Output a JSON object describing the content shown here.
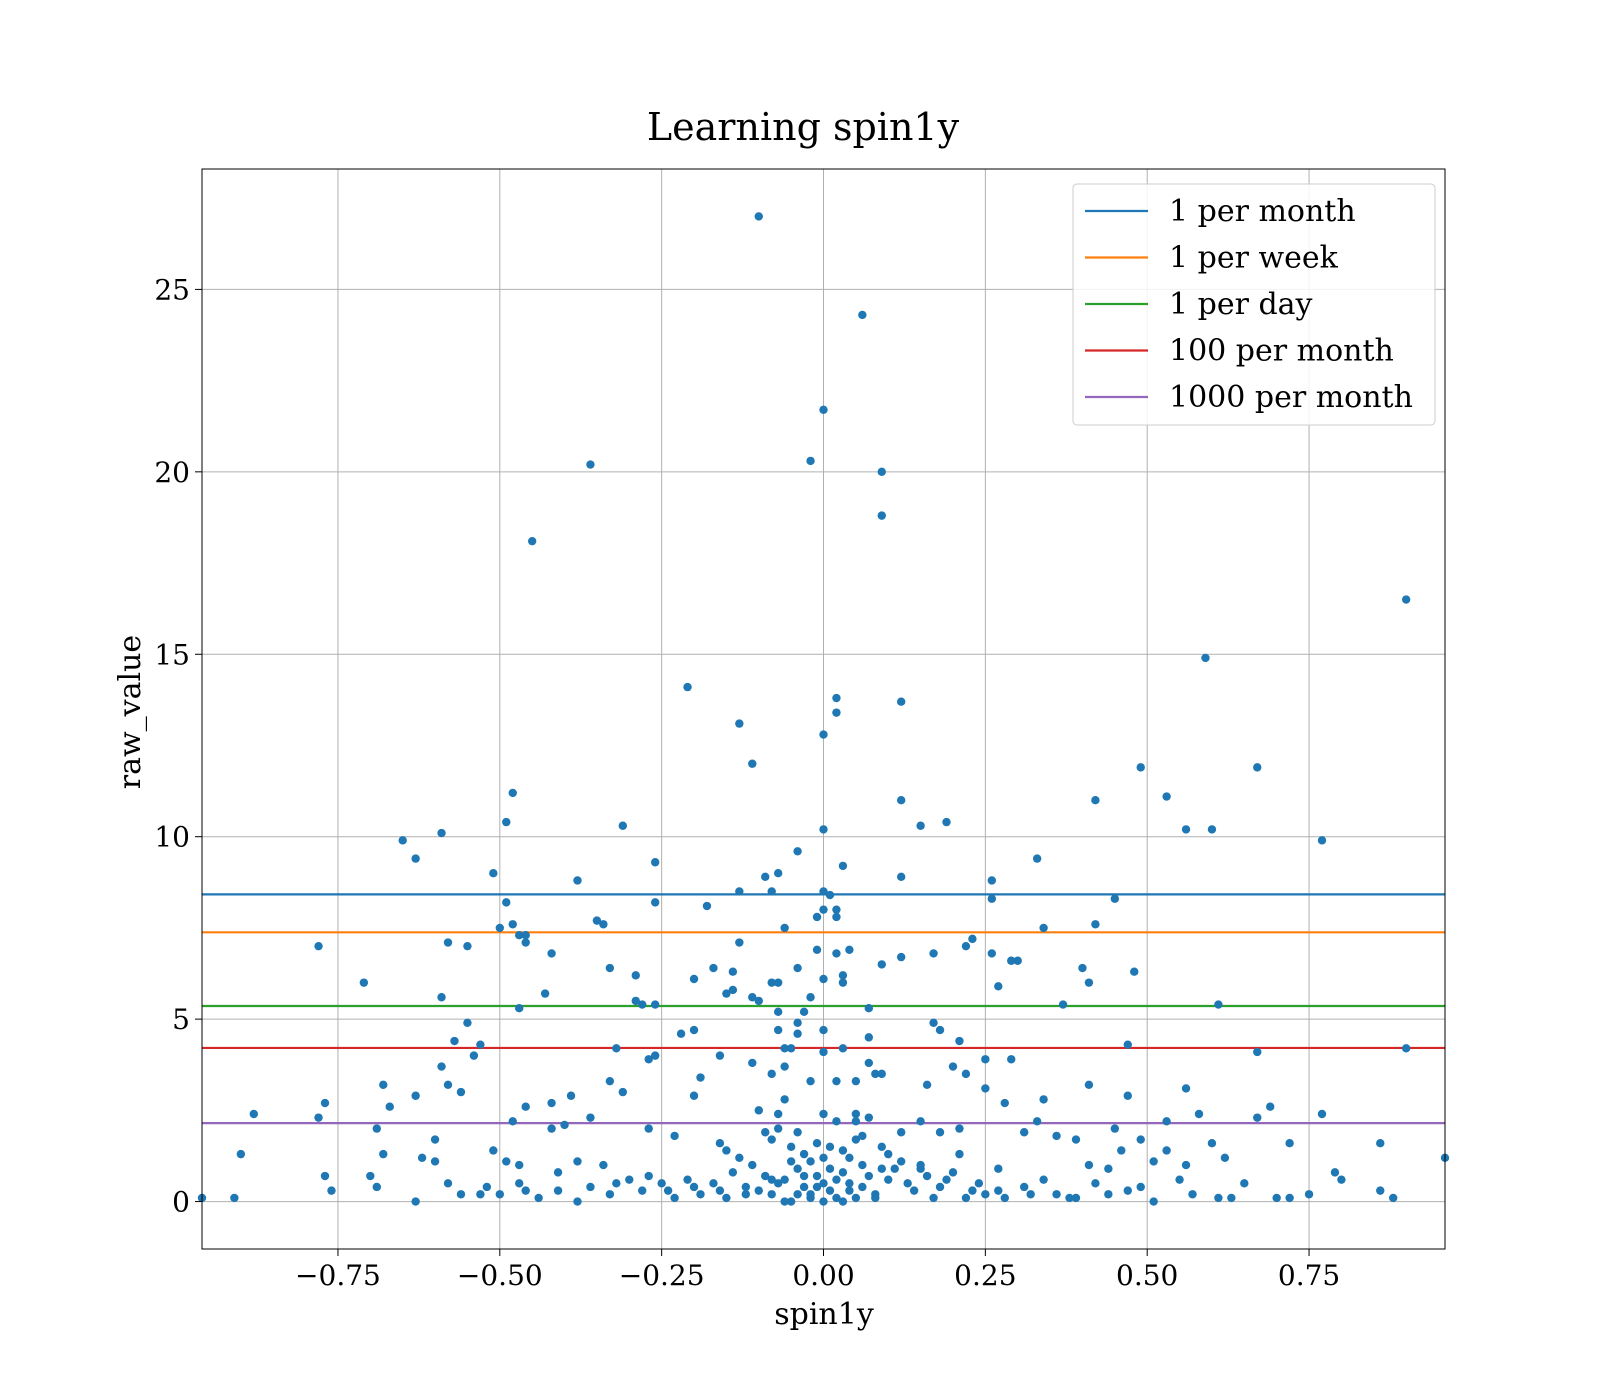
{
  "chart_data": {
    "type": "scatter",
    "title": "Learning spin1y",
    "xlabel": "spin1y",
    "ylabel": "raw_value",
    "xlim": [
      -0.96,
      0.96
    ],
    "ylim": [
      -1.3,
      28.3
    ],
    "grid": true,
    "legend_position": "top-right",
    "x_ticks": [
      -0.75,
      -0.5,
      -0.25,
      0.0,
      0.25,
      0.5,
      0.75
    ],
    "x_tick_labels": [
      "−0.75",
      "−0.50",
      "−0.25",
      "0.00",
      "0.25",
      "0.50",
      "0.75"
    ],
    "y_ticks": [
      0,
      5,
      10,
      15,
      20,
      25
    ],
    "y_tick_labels": [
      "0",
      "5",
      "10",
      "15",
      "20",
      "25"
    ],
    "scatter_color": "#1f77b4",
    "hlines": [
      {
        "name": "1 per month",
        "y": 8.42,
        "color": "#1f77b4"
      },
      {
        "name": "1 per week",
        "y": 7.38,
        "color": "#ff7f0e"
      },
      {
        "name": "1 per day",
        "y": 5.36,
        "color": "#2ca02c"
      },
      {
        "name": "100 per month",
        "y": 4.21,
        "color": "#d62728"
      },
      {
        "name": "1000 per month",
        "y": 2.15,
        "color": "#9467bd"
      }
    ],
    "points": [
      [
        -0.1,
        27.0
      ],
      [
        0.06,
        24.3
      ],
      [
        0.0,
        21.7
      ],
      [
        -0.02,
        20.3
      ],
      [
        0.09,
        20.0
      ],
      [
        -0.36,
        20.2
      ],
      [
        0.09,
        18.8
      ],
      [
        -0.45,
        18.1
      ],
      [
        0.9,
        16.5
      ],
      [
        0.59,
        14.9
      ],
      [
        -0.21,
        14.1
      ],
      [
        0.02,
        13.8
      ],
      [
        0.12,
        13.7
      ],
      [
        0.02,
        13.4
      ],
      [
        -0.13,
        13.1
      ],
      [
        0.0,
        12.8
      ],
      [
        -0.11,
        12.0
      ],
      [
        0.67,
        11.9
      ],
      [
        0.49,
        11.9
      ],
      [
        -0.48,
        11.2
      ],
      [
        0.53,
        11.1
      ],
      [
        0.42,
        11.0
      ],
      [
        0.12,
        11.0
      ],
      [
        0.19,
        10.4
      ],
      [
        -0.49,
        10.4
      ],
      [
        -0.31,
        10.3
      ],
      [
        0.15,
        10.3
      ],
      [
        0.0,
        10.2
      ],
      [
        0.56,
        10.2
      ],
      [
        0.6,
        10.2
      ],
      [
        -0.59,
        10.1
      ],
      [
        -0.65,
        9.9
      ],
      [
        0.77,
        9.9
      ],
      [
        -0.04,
        9.6
      ],
      [
        0.33,
        9.4
      ],
      [
        -0.63,
        9.4
      ],
      [
        -0.26,
        9.3
      ],
      [
        0.03,
        9.2
      ],
      [
        -0.51,
        9.0
      ],
      [
        -0.07,
        9.0
      ],
      [
        0.12,
        8.9
      ],
      [
        -0.09,
        8.9
      ],
      [
        -0.38,
        8.8
      ],
      [
        0.26,
        8.8
      ],
      [
        0.0,
        8.5
      ],
      [
        -0.13,
        8.5
      ],
      [
        -0.08,
        8.5
      ],
      [
        0.01,
        8.4
      ],
      [
        0.45,
        8.3
      ],
      [
        0.26,
        8.3
      ],
      [
        -0.49,
        8.2
      ],
      [
        -0.26,
        8.2
      ],
      [
        -0.18,
        8.1
      ],
      [
        0.0,
        8.0
      ],
      [
        0.02,
        8.0
      ],
      [
        0.02,
        7.8
      ],
      [
        -0.01,
        7.8
      ],
      [
        -0.35,
        7.7
      ],
      [
        -0.34,
        7.6
      ],
      [
        0.42,
        7.6
      ],
      [
        -0.48,
        7.6
      ],
      [
        -0.5,
        7.5
      ],
      [
        0.34,
        7.5
      ],
      [
        -0.06,
        7.5
      ],
      [
        -0.46,
        7.3
      ],
      [
        -0.47,
        7.3
      ],
      [
        0.23,
        7.2
      ],
      [
        -0.58,
        7.1
      ],
      [
        -0.46,
        7.1
      ],
      [
        -0.13,
        7.1
      ],
      [
        -0.55,
        7.0
      ],
      [
        -0.78,
        7.0
      ],
      [
        0.22,
        7.0
      ],
      [
        0.17,
        6.8
      ],
      [
        0.04,
        6.9
      ],
      [
        -0.01,
        6.9
      ],
      [
        0.26,
        6.8
      ],
      [
        0.02,
        6.8
      ],
      [
        -0.42,
        6.8
      ],
      [
        0.12,
        6.7
      ],
      [
        0.3,
        6.6
      ],
      [
        0.29,
        6.6
      ],
      [
        0.09,
        6.5
      ],
      [
        -0.04,
        6.4
      ],
      [
        -0.17,
        6.4
      ],
      [
        -0.33,
        6.4
      ],
      [
        0.4,
        6.4
      ],
      [
        -0.14,
        6.3
      ],
      [
        0.48,
        6.3
      ],
      [
        -0.29,
        6.2
      ],
      [
        -0.2,
        6.1
      ],
      [
        -0.0,
        6.1
      ],
      [
        0.03,
        6.0
      ],
      [
        0.03,
        6.2
      ],
      [
        -0.08,
        6.0
      ],
      [
        -0.07,
        6.0
      ],
      [
        0.41,
        6.0
      ],
      [
        -0.71,
        6.0
      ],
      [
        0.27,
        5.9
      ],
      [
        -0.14,
        5.8
      ],
      [
        -0.15,
        5.7
      ],
      [
        -0.43,
        5.7
      ],
      [
        -0.11,
        5.6
      ],
      [
        -0.02,
        5.6
      ],
      [
        -0.59,
        5.6
      ],
      [
        -0.29,
        5.5
      ],
      [
        -0.28,
        5.4
      ],
      [
        -0.26,
        5.4
      ],
      [
        -0.1,
        5.5
      ],
      [
        0.61,
        5.4
      ],
      [
        0.37,
        5.4
      ],
      [
        0.07,
        5.3
      ],
      [
        -0.47,
        5.3
      ],
      [
        -0.07,
        5.2
      ],
      [
        -0.03,
        5.2
      ],
      [
        -0.04,
        4.9
      ],
      [
        -0.55,
        4.9
      ],
      [
        0.17,
        4.9
      ],
      [
        0.0,
        4.7
      ],
      [
        -0.2,
        4.7
      ],
      [
        0.18,
        4.7
      ],
      [
        -0.22,
        4.6
      ],
      [
        -0.07,
        4.7
      ],
      [
        -0.04,
        4.6
      ],
      [
        0.07,
        4.5
      ],
      [
        -0.57,
        4.4
      ],
      [
        0.21,
        4.4
      ],
      [
        0.47,
        4.3
      ],
      [
        -0.53,
        4.3
      ],
      [
        -0.05,
        4.2
      ],
      [
        0.03,
        4.2
      ],
      [
        -0.32,
        4.2
      ],
      [
        0.0,
        4.1
      ],
      [
        0.67,
        4.1
      ],
      [
        0.9,
        4.2
      ],
      [
        -0.06,
        4.2
      ],
      [
        -0.54,
        4.0
      ],
      [
        -0.16,
        4.0
      ],
      [
        -0.26,
        4.0
      ],
      [
        -0.27,
        3.9
      ],
      [
        0.25,
        3.9
      ],
      [
        0.07,
        3.8
      ],
      [
        -0.11,
        3.8
      ],
      [
        0.29,
        3.9
      ],
      [
        -0.06,
        3.7
      ],
      [
        -0.59,
        3.7
      ],
      [
        0.2,
        3.7
      ],
      [
        0.08,
        3.5
      ],
      [
        -0.19,
        3.4
      ],
      [
        0.22,
        3.5
      ],
      [
        0.09,
        3.5
      ],
      [
        -0.08,
        3.5
      ],
      [
        -0.02,
        3.3
      ],
      [
        0.05,
        3.3
      ],
      [
        -0.33,
        3.3
      ],
      [
        0.02,
        3.3
      ],
      [
        0.16,
        3.2
      ],
      [
        0.41,
        3.2
      ],
      [
        -0.68,
        3.2
      ],
      [
        -0.58,
        3.2
      ],
      [
        0.56,
        3.1
      ],
      [
        -0.56,
        3.0
      ],
      [
        -0.31,
        3.0
      ],
      [
        0.25,
        3.1
      ],
      [
        -0.2,
        2.9
      ],
      [
        0.47,
        2.9
      ],
      [
        -0.63,
        2.9
      ],
      [
        0.34,
        2.8
      ],
      [
        -0.77,
        2.7
      ],
      [
        -0.39,
        2.9
      ],
      [
        -0.06,
        2.8
      ],
      [
        0.28,
        2.7
      ],
      [
        0.69,
        2.6
      ],
      [
        -0.46,
        2.6
      ],
      [
        -0.67,
        2.6
      ],
      [
        -0.42,
        2.7
      ],
      [
        -0.1,
        2.5
      ],
      [
        0.05,
        2.4
      ],
      [
        -0.07,
        2.4
      ],
      [
        0.0,
        2.4
      ],
      [
        0.58,
        2.4
      ],
      [
        -0.88,
        2.4
      ],
      [
        -0.78,
        2.3
      ],
      [
        0.77,
        2.4
      ],
      [
        -0.36,
        2.3
      ],
      [
        0.33,
        2.2
      ],
      [
        0.67,
        2.3
      ],
      [
        0.15,
        2.2
      ],
      [
        -0.48,
        2.2
      ],
      [
        0.05,
        2.2
      ],
      [
        0.53,
        2.2
      ],
      [
        0.02,
        2.2
      ],
      [
        -0.4,
        2.1
      ],
      [
        -0.42,
        2.0
      ],
      [
        -0.27,
        2.0
      ],
      [
        0.21,
        2.0
      ],
      [
        -0.69,
        2.0
      ],
      [
        0.45,
        2.0
      ],
      [
        -0.04,
        1.9
      ],
      [
        0.31,
        1.9
      ],
      [
        -0.09,
        1.9
      ],
      [
        0.12,
        1.9
      ],
      [
        0.36,
        1.8
      ],
      [
        0.18,
        1.9
      ],
      [
        -0.23,
        1.8
      ],
      [
        0.05,
        1.7
      ],
      [
        0.6,
        1.6
      ],
      [
        0.72,
        1.6
      ],
      [
        0.86,
        1.6
      ],
      [
        0.49,
        1.7
      ],
      [
        -0.6,
        1.7
      ],
      [
        0.39,
        1.7
      ],
      [
        -0.16,
        1.6
      ],
      [
        0.09,
        1.5
      ],
      [
        -0.15,
        1.4
      ],
      [
        -0.51,
        1.4
      ],
      [
        0.53,
        1.4
      ],
      [
        0.46,
        1.4
      ],
      [
        0.21,
        1.3
      ],
      [
        -0.68,
        1.3
      ],
      [
        -0.62,
        1.2
      ],
      [
        0.62,
        1.2
      ],
      [
        -0.9,
        1.3
      ],
      [
        0.96,
        1.2
      ],
      [
        -0.38,
        1.1
      ],
      [
        -0.47,
        1.0
      ],
      [
        -0.49,
        1.1
      ],
      [
        0.56,
        1.0
      ],
      [
        0.51,
        1.1
      ],
      [
        -0.34,
        1.0
      ],
      [
        0.41,
        1.0
      ],
      [
        0.15,
        0.9
      ],
      [
        -0.6,
        1.1
      ],
      [
        0.79,
        0.8
      ],
      [
        0.27,
        0.9
      ],
      [
        -0.7,
        0.7
      ],
      [
        -0.41,
        0.8
      ],
      [
        0.44,
        0.9
      ],
      [
        0.55,
        0.6
      ],
      [
        -0.77,
        0.7
      ],
      [
        0.8,
        0.6
      ],
      [
        -0.69,
        0.4
      ],
      [
        -0.76,
        0.3
      ],
      [
        0.65,
        0.5
      ],
      [
        0.86,
        0.3
      ],
      [
        -0.46,
        0.3
      ],
      [
        0.47,
        0.3
      ],
      [
        0.88,
        0.1
      ],
      [
        0.75,
        0.2
      ],
      [
        0.72,
        0.1
      ],
      [
        0.7,
        0.1
      ],
      [
        0.61,
        0.1
      ],
      [
        0.63,
        0.1
      ],
      [
        0.38,
        0.1
      ],
      [
        0.22,
        0.1
      ],
      [
        -0.63,
        0.0
      ],
      [
        -0.91,
        0.1
      ],
      [
        -0.96,
        0.1
      ],
      [
        -0.53,
        0.2
      ],
      [
        -0.56,
        0.2
      ],
      [
        -0.05,
        0.0
      ],
      [
        0.0,
        0.0
      ],
      [
        0.02,
        0.1
      ],
      [
        -0.02,
        0.1
      ],
      [
        -0.08,
        0.2
      ],
      [
        0.01,
        0.3
      ],
      [
        -0.03,
        0.4
      ],
      [
        0.04,
        0.5
      ],
      [
        -0.06,
        0.6
      ],
      [
        -0.01,
        0.7
      ],
      [
        0.03,
        0.8
      ],
      [
        -0.04,
        0.9
      ],
      [
        0.06,
        1.0
      ],
      [
        -0.02,
        1.1
      ],
      [
        0.0,
        1.2
      ],
      [
        -0.1,
        0.3
      ],
      [
        0.08,
        0.2
      ],
      [
        -0.12,
        0.4
      ],
      [
        0.1,
        0.6
      ],
      [
        -0.14,
        0.8
      ],
      [
        0.11,
        0.9
      ],
      [
        -0.15,
        0.1
      ],
      [
        0.14,
        0.3
      ],
      [
        -0.17,
        0.5
      ],
      [
        0.16,
        0.7
      ],
      [
        -0.19,
        0.2
      ],
      [
        0.18,
        0.4
      ],
      [
        -0.21,
        0.6
      ],
      [
        0.2,
        0.8
      ],
      [
        -0.23,
        0.1
      ],
      [
        0.23,
        0.3
      ],
      [
        -0.25,
        0.5
      ],
      [
        0.25,
        0.2
      ],
      [
        -0.28,
        0.3
      ],
      [
        0.28,
        0.1
      ],
      [
        -0.3,
        0.6
      ],
      [
        0.31,
        0.4
      ],
      [
        -0.33,
        0.2
      ],
      [
        0.34,
        0.6
      ],
      [
        -0.36,
        0.4
      ],
      [
        0.36,
        0.2
      ],
      [
        -0.38,
        0.0
      ],
      [
        0.39,
        0.1
      ],
      [
        -0.41,
        0.3
      ],
      [
        0.42,
        0.5
      ],
      [
        -0.44,
        0.1
      ],
      [
        0.44,
        0.2
      ],
      [
        -0.47,
        0.5
      ],
      [
        0.49,
        0.4
      ],
      [
        -0.5,
        0.2
      ],
      [
        0.51,
        0.0
      ],
      [
        -0.52,
        0.4
      ],
      [
        0.57,
        0.2
      ],
      [
        -0.58,
        0.5
      ],
      [
        -0.04,
        0.2
      ],
      [
        0.04,
        0.3
      ],
      [
        -0.07,
        0.5
      ],
      [
        0.07,
        0.7
      ],
      [
        -0.09,
        0.7
      ],
      [
        0.09,
        0.9
      ],
      [
        -0.11,
        1.0
      ],
      [
        0.12,
        1.1
      ],
      [
        -0.01,
        1.6
      ],
      [
        0.01,
        1.5
      ],
      [
        -0.03,
        1.3
      ],
      [
        0.03,
        1.4
      ],
      [
        -0.05,
        1.1
      ],
      [
        0.05,
        0.1
      ],
      [
        -0.06,
        0.0
      ],
      [
        0.06,
        0.4
      ],
      [
        -0.08,
        0.6
      ],
      [
        0.08,
        0.1
      ],
      [
        -0.12,
        0.2
      ],
      [
        0.13,
        0.5
      ],
      [
        -0.16,
        0.3
      ],
      [
        0.17,
        0.1
      ],
      [
        -0.2,
        0.4
      ],
      [
        0.19,
        0.6
      ],
      [
        -0.24,
        0.3
      ],
      [
        0.24,
        0.5
      ],
      [
        -0.27,
        0.7
      ],
      [
        0.27,
        0.3
      ],
      [
        -0.32,
        0.5
      ],
      [
        0.32,
        0.2
      ],
      [
        -0.02,
        0.2
      ],
      [
        0.02,
        0.6
      ],
      [
        -0.01,
        0.4
      ],
      [
        0.01,
        0.9
      ],
      [
        0.0,
        0.5
      ],
      [
        0.03,
        0.0
      ],
      [
        -0.03,
        0.7
      ],
      [
        0.04,
        1.2
      ],
      [
        -0.05,
        1.5
      ],
      [
        0.06,
        1.8
      ],
      [
        -0.07,
        2.0
      ],
      [
        0.07,
        2.3
      ],
      [
        -0.08,
        1.7
      ],
      [
        0.1,
        1.3
      ],
      [
        -0.13,
        1.2
      ],
      [
        0.15,
        1.0
      ]
    ]
  }
}
